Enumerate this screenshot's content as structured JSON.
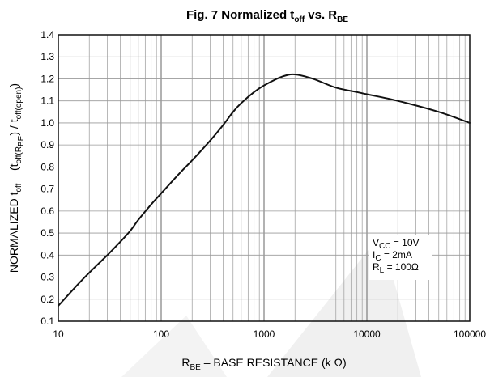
{
  "chart_data": {
    "type": "line",
    "title": {
      "main": "Fig. 7  Normalized t",
      "sub1": "off",
      "mid": " vs. R",
      "sub2": "BE"
    },
    "xlabel": {
      "pre": "R",
      "sub": "BE",
      "post": " – BASE RESISTANCE (k Ω)"
    },
    "ylabel": {
      "p1": "NORMALIZED t",
      "s1": "off",
      "p2": " – (t",
      "s2": "off(R",
      "s3": "BE",
      "p3": ")",
      "p4": " / t",
      "s4": "off(open)",
      "p5": ")"
    },
    "x_scale": "log",
    "xlim": [
      10,
      100000
    ],
    "ylim": [
      0.1,
      1.4
    ],
    "grid": true,
    "x_ticks": [
      10,
      100,
      1000,
      10000,
      100000
    ],
    "x_tick_labels": [
      "10",
      "100",
      "1000",
      "10000",
      "100000"
    ],
    "y_ticks": [
      0.1,
      0.2,
      0.3,
      0.4,
      0.5,
      0.6,
      0.7,
      0.8,
      0.9,
      1.0,
      1.1,
      1.2,
      1.3,
      1.4
    ],
    "y_tick_labels": [
      "0.1",
      "0.2",
      "0.3",
      "0.4",
      "0.5",
      "0.6",
      "0.7",
      "0.8",
      "0.9",
      "1.0",
      "1.1",
      "1.2",
      "1.3",
      "1.4"
    ],
    "series": [
      {
        "x": [
          10,
          15,
          20,
          30,
          40,
          50,
          60,
          80,
          100,
          150,
          200,
          300,
          400,
          500,
          600,
          800,
          1000,
          1500,
          2000,
          3000,
          5000,
          8000,
          10000,
          20000,
          50000,
          100000
        ],
        "y": [
          0.17,
          0.26,
          0.32,
          0.4,
          0.46,
          0.51,
          0.56,
          0.63,
          0.68,
          0.77,
          0.83,
          0.92,
          0.99,
          1.05,
          1.09,
          1.14,
          1.17,
          1.21,
          1.22,
          1.2,
          1.16,
          1.14,
          1.13,
          1.1,
          1.05,
          1.0
        ]
      }
    ],
    "annotations": [
      {
        "pre": "V",
        "sub": "CC",
        "post": " = 10V"
      },
      {
        "pre": "I",
        "sub": "C",
        "post": " = 2mA"
      },
      {
        "pre": "R",
        "sub": "L",
        "post": " = 100Ω"
      }
    ],
    "colors": {
      "line": "#111111",
      "grid": "#9a9a9a",
      "frame": "#111111",
      "watermark": "#f0f0f0"
    }
  }
}
